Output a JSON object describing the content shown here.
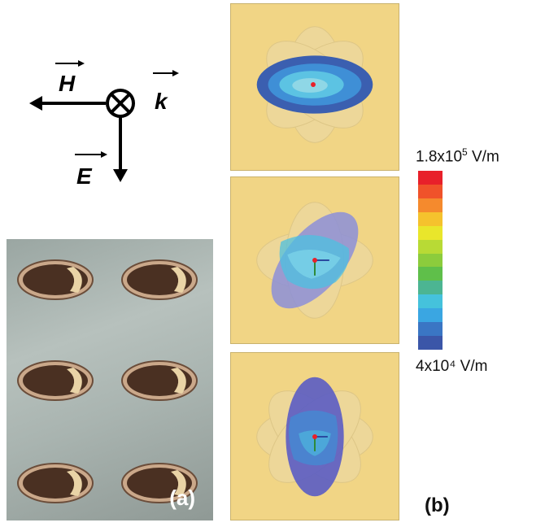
{
  "diagram": {
    "h_label": "H",
    "k_label": "k",
    "e_label": "E"
  },
  "photo": {
    "label": "(a)"
  },
  "simulation": {
    "label": "(b)"
  },
  "color_scale": {
    "max_label_main": "1.8x10",
    "max_label_exp": "5",
    "max_label_unit": " V/m",
    "min_label": "4x10⁴ V/m",
    "colors": [
      "#e8202a",
      "#f0522a",
      "#f58a2d",
      "#f5c22d",
      "#e9e62b",
      "#b8da35",
      "#8ccc3c",
      "#5fbf4a",
      "#4cb592",
      "#45c2dc",
      "#3aa6e2",
      "#3a76c4",
      "#3b56a8"
    ]
  }
}
